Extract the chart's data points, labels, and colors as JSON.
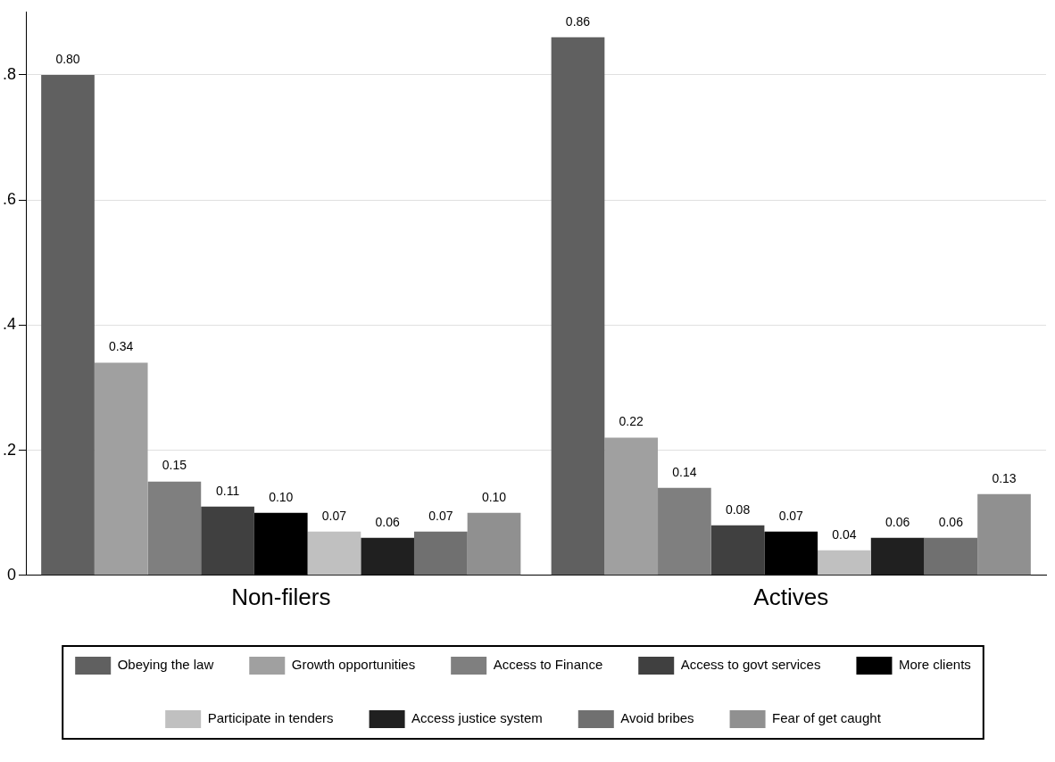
{
  "chart_data": {
    "type": "bar",
    "categories": [
      "Non-filers",
      "Actives"
    ],
    "series": [
      {
        "name": "Obeying the law",
        "color": "#606060",
        "values": [
          0.8,
          0.86
        ],
        "value_labels": [
          "0.80",
          "0.86"
        ]
      },
      {
        "name": "Growth opportunities",
        "color": "#a0a0a0",
        "values": [
          0.34,
          0.22
        ],
        "value_labels": [
          "0.34",
          "0.22"
        ]
      },
      {
        "name": "Access to Finance",
        "color": "#7f7f7f",
        "values": [
          0.15,
          0.14
        ],
        "value_labels": [
          "0.15",
          "0.14"
        ]
      },
      {
        "name": "Access to govt services",
        "color": "#404040",
        "values": [
          0.11,
          0.08
        ],
        "value_labels": [
          "0.11",
          "0.08"
        ]
      },
      {
        "name": "More clients",
        "color": "#000000",
        "values": [
          0.1,
          0.07
        ],
        "value_labels": [
          "0.10",
          "0.07"
        ]
      },
      {
        "name": "Participate in tenders",
        "color": "#c0c0c0",
        "values": [
          0.07,
          0.04
        ],
        "value_labels": [
          "0.07",
          "0.04"
        ]
      },
      {
        "name": "Access justice system",
        "color": "#202020",
        "values": [
          0.06,
          0.06
        ],
        "value_labels": [
          "0.06",
          "0.06"
        ]
      },
      {
        "name": "Avoid bribes",
        "color": "#707070",
        "values": [
          0.07,
          0.06
        ],
        "value_labels": [
          "0.07",
          "0.06"
        ]
      },
      {
        "name": "Fear of get caught",
        "color": "#909090",
        "values": [
          0.1,
          0.13
        ],
        "value_labels": [
          "0.10",
          "0.13"
        ]
      }
    ],
    "ylim": [
      0,
      0.9
    ],
    "yticks": [
      0,
      {
        "value": 0.2,
        "label": ".2"
      },
      {
        "value": 0.4,
        "label": ".4"
      },
      {
        "value": 0.6,
        "label": ".6"
      },
      {
        "value": 0.8,
        "label": ".8"
      }
    ],
    "grid": "y",
    "legend": "bottom"
  }
}
